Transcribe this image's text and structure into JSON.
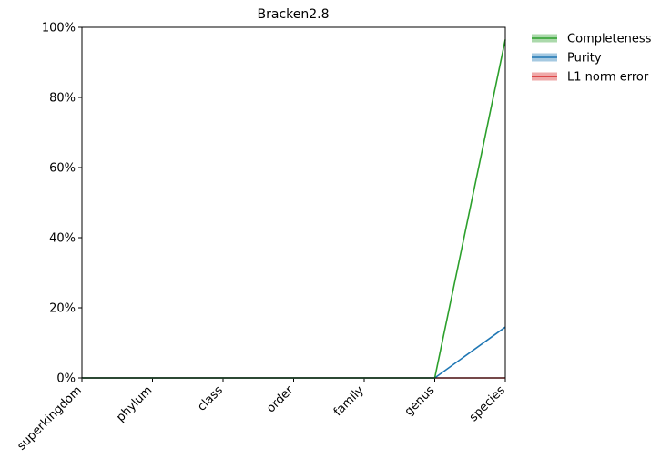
{
  "chart_data": {
    "type": "line",
    "title": "Bracken2.8",
    "categories": [
      "superkingdom",
      "phylum",
      "class",
      "order",
      "family",
      "genus",
      "species"
    ],
    "series": [
      {
        "name": "Completeness",
        "color": "#2ca02c",
        "values": [
          0,
          0,
          0,
          0,
          0,
          0,
          96.5
        ]
      },
      {
        "name": "Purity",
        "color": "#1f77b4",
        "values": [
          0,
          0,
          0,
          0,
          0,
          0,
          14.5
        ]
      },
      {
        "name": "L1 norm error",
        "color": "#d62728",
        "values": [
          0,
          0,
          0,
          0,
          0,
          0,
          0
        ]
      }
    ],
    "ylim": [
      0,
      100
    ],
    "yticks": [
      {
        "value": 0,
        "label": "0%"
      },
      {
        "value": 20,
        "label": "20%"
      },
      {
        "value": 40,
        "label": "40%"
      },
      {
        "value": 60,
        "label": "60%"
      },
      {
        "value": 80,
        "label": "80%"
      },
      {
        "value": 100,
        "label": "100%"
      }
    ],
    "legend": "outside-right"
  }
}
